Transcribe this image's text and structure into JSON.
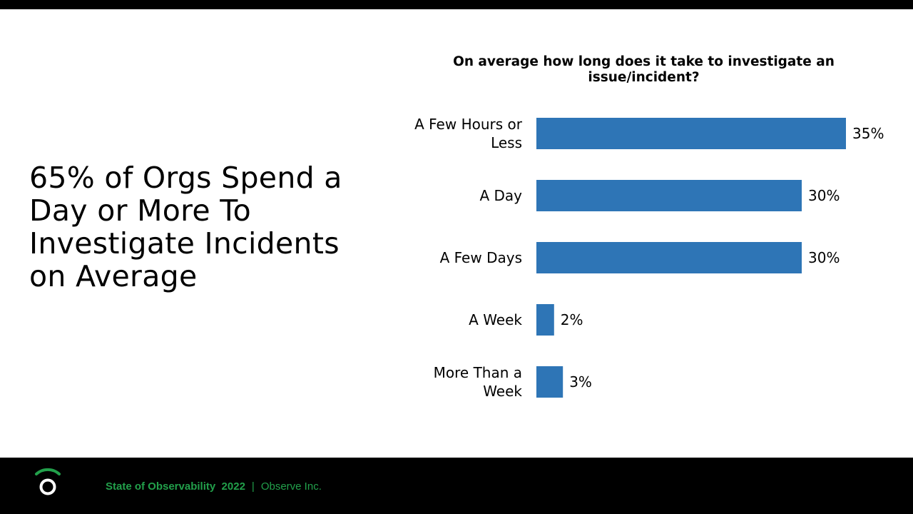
{
  "headline": "65% of Orgs Spend a Day or More To Investigate Incidents on Average",
  "footer": {
    "report": "State of Observability  2022",
    "separator": "|",
    "company": "Observe Inc."
  },
  "colors": {
    "bar": "#2e75b6",
    "footer_text": "#22a04b"
  },
  "chart_data": {
    "type": "bar",
    "orientation": "horizontal",
    "title": "On average how long does it take to investigate an issue/incident?",
    "categories": [
      [
        "A Few Hours or",
        "Less"
      ],
      [
        "A Day"
      ],
      [
        "A Few Days"
      ],
      [
        "A Week"
      ],
      [
        "More Than a",
        "Week"
      ]
    ],
    "values": [
      35,
      30,
      30,
      2,
      3
    ],
    "value_labels": [
      "35%",
      "30%",
      "30%",
      "2%",
      "3%"
    ],
    "unit": "%",
    "xlim": [
      0,
      35
    ],
    "grid": false,
    "legend": "none"
  }
}
